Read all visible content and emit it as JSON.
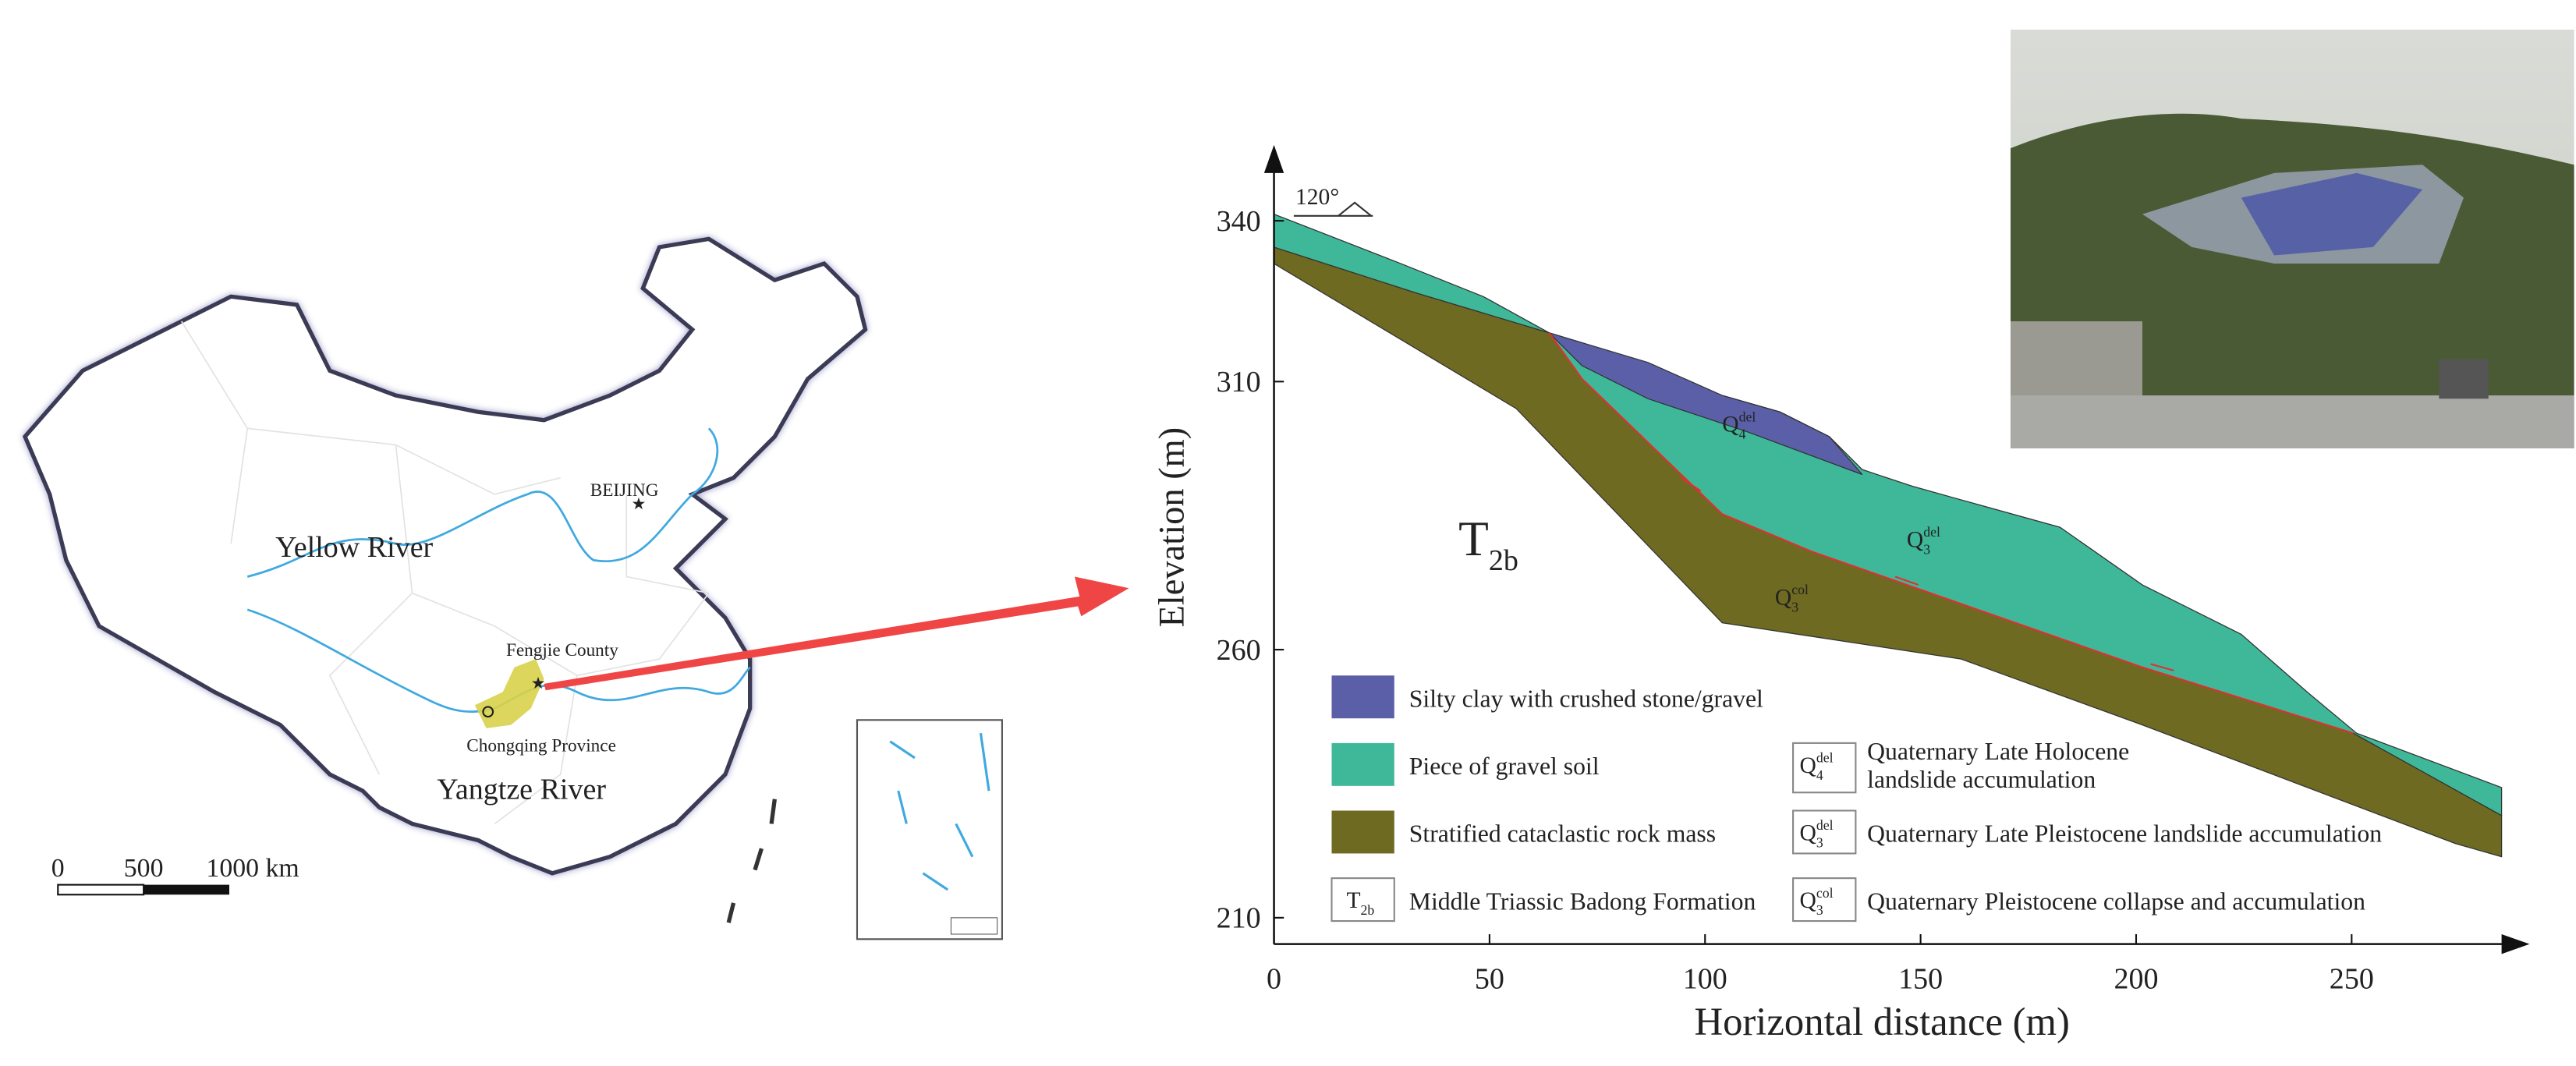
{
  "map": {
    "labels": {
      "yellow_river": "Yellow River",
      "beijing": "BEIJING",
      "fengjie": "Fengjie County",
      "chongqing": "Chongqing Province",
      "yangtze": "Yangtze River"
    },
    "scale": [
      "0",
      "500",
      "1000 km"
    ]
  },
  "section": {
    "y_label": "Elevation (m)",
    "x_label": "Horizontal distance (m)",
    "xticks": [
      0,
      50,
      100,
      150,
      200,
      250
    ],
    "yticks": [
      210,
      260,
      310,
      340
    ],
    "orientation": "120°",
    "formation": {
      "base": "T",
      "sub": "2b"
    },
    "layers": [
      {
        "base": "Q",
        "sub": "4",
        "sup": "del"
      },
      {
        "base": "Q",
        "sub": "3",
        "sup": "del"
      },
      {
        "base": "Q",
        "sub": "3",
        "sup": "col"
      }
    ],
    "legend": {
      "left": [
        "Silty clay with crushed stone/gravel",
        "Piece of gravel soil",
        "Stratified cataclastic rock mass",
        "Middle Triassic Badong Formation"
      ],
      "right": [
        [
          "Quaternary Late Holocene",
          "landslide accumulation"
        ],
        [
          "Quaternary Late Pleistocene landslide accumulation"
        ],
        [
          "Quaternary Pleistocene collapse and accumulation"
        ]
      ]
    }
  }
}
